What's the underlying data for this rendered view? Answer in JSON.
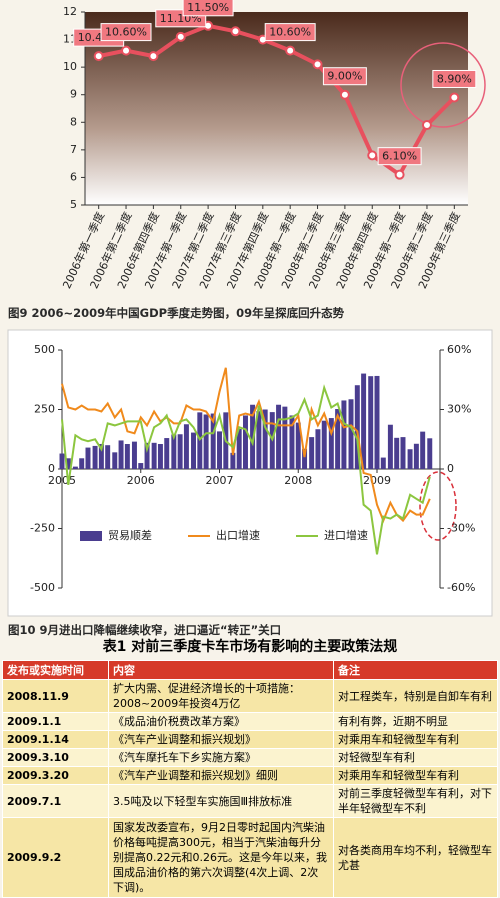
{
  "chart_data": [
    {
      "type": "line",
      "categories": [
        "2006年第一季度",
        "2006年第二季度",
        "2006年第四季度",
        "2007年第一季度",
        "2007年第二季度",
        "2007年第三季度",
        "2007年第四季度",
        "2008年第一季度",
        "2008年第二季度",
        "2008年第三季度",
        "2008年第四季度",
        "2009年第一季度",
        "2009年第二季度",
        "2009年第三季度"
      ],
      "series": [
        {
          "name": null,
          "color": "#e8505e",
          "values": [
            10.4,
            10.6,
            10.4,
            11.1,
            11.5,
            11.3,
            11.0,
            10.6,
            10.1,
            9.0,
            6.8,
            6.1,
            7.9,
            8.9
          ],
          "value_labels": [
            "10.40%",
            "10.60%",
            null,
            "11.10%",
            "11.50%",
            null,
            null,
            "10.60%",
            null,
            "9.00%",
            null,
            "6.10%",
            null,
            "8.90%"
          ]
        }
      ],
      "ylim": [
        5,
        12
      ],
      "yticks": [
        5,
        6,
        7,
        8,
        9,
        10,
        11,
        12
      ]
    },
    {
      "type": "combo",
      "x": [
        2005,
        2005.08,
        2005.17,
        2005.25,
        2005.33,
        2005.42,
        2005.5,
        2005.58,
        2005.67,
        2005.75,
        2005.83,
        2005.92,
        2006,
        2006.08,
        2006.17,
        2006.25,
        2006.33,
        2006.42,
        2006.5,
        2006.58,
        2006.67,
        2006.75,
        2006.83,
        2006.92,
        2007,
        2007.08,
        2007.17,
        2007.25,
        2007.33,
        2007.42,
        2007.5,
        2007.58,
        2007.67,
        2007.75,
        2007.83,
        2007.92,
        2008,
        2008.08,
        2008.17,
        2008.25,
        2008.33,
        2008.42,
        2008.5,
        2008.58,
        2008.67,
        2008.75,
        2008.83,
        2008.92,
        2009,
        2009.08,
        2009.17,
        2009.25,
        2009.33,
        2009.42,
        2009.5,
        2009.58,
        2009.67
      ],
      "series": [
        {
          "name": "贸易顺差",
          "type": "bar",
          "color": "#4a3d8f",
          "values": [
            65,
            45,
            10,
            45,
            90,
            97,
            105,
            100,
            70,
            120,
            105,
            115,
            25,
            110,
            110,
            105,
            130,
            145,
            146,
            188,
            153,
            238,
            229,
            233,
            158,
            238,
            68,
            168,
            225,
            270,
            243,
            250,
            239,
            270,
            262,
            225,
            195,
            85,
            134,
            167,
            203,
            214,
            252,
            288,
            293,
            352,
            401,
            390,
            391,
            48,
            186,
            131,
            134,
            83,
            106,
            157,
            129
          ]
        },
        {
          "name": "出口增速",
          "type": "line",
          "axis": "y2",
          "color": "#f08a1c",
          "values": [
            43,
            31,
            30,
            32,
            30,
            30,
            29,
            33,
            26,
            30,
            19,
            18,
            26,
            22,
            29,
            24,
            26,
            23,
            23,
            32,
            30,
            30,
            29,
            24,
            39,
            51,
            7,
            27,
            28,
            27,
            34,
            23,
            23,
            22,
            22,
            22,
            27,
            6,
            30,
            22,
            28,
            18,
            27,
            21,
            22,
            19,
            -2,
            -3,
            -18,
            -26,
            -17,
            -23,
            -26,
            -21,
            -23,
            -23,
            -15
          ]
        },
        {
          "name": "进口增速",
          "type": "line",
          "axis": "y2",
          "color": "#8cc63f",
          "values": [
            25,
            -8,
            17,
            15,
            14,
            15,
            10,
            23,
            22,
            23,
            24,
            24,
            24,
            10,
            21,
            23,
            27,
            16,
            24,
            25,
            21,
            15,
            18,
            18,
            27,
            14,
            11,
            21,
            20,
            13,
            32,
            21,
            15,
            25,
            25,
            26,
            28,
            35,
            25,
            27,
            41,
            31,
            33,
            23,
            21,
            15,
            -18,
            -21,
            -43,
            -24,
            -25,
            -23,
            -25,
            -13,
            -15,
            -17,
            -4
          ]
        }
      ],
      "xlim": [
        2005,
        2009.8
      ],
      "xticks": [
        2005,
        2006,
        2007,
        2008,
        2009
      ],
      "ylim": [
        -500,
        500
      ],
      "yticks": [
        -500,
        -250,
        0,
        250,
        500
      ],
      "y2lim": [
        -60,
        60
      ],
      "y2ticks": [
        {
          "value": 60,
          "label": "60%"
        },
        {
          "value": 30,
          "label": "30%"
        },
        0,
        {
          "value": -30,
          "label": "-30%"
        },
        {
          "value": -60,
          "label": "-60%"
        }
      ]
    }
  ],
  "captions": [
    "图9 2006~2009年中国GDP季度走势图，09年呈探底回升态势",
    "图10 9月进出口降幅继续收窄，进口逼近“转正”关口"
  ],
  "table": {
    "title": "表1 对前三季度卡车市场有影响的主要政策法规",
    "header": [
      "发布或实施时间",
      "内容",
      "备注"
    ],
    "rows": [
      [
        "2008.11.9",
        "扩大内需、促进经济增长的十项措施：2008~2009年投资4万亿",
        "对工程类车，特别是自卸车有利"
      ],
      [
        "2009.1.1",
        "《成品油价税费改革方案》",
        "有利有弊，近期不明显"
      ],
      [
        "2009.1.14",
        "《汽车产业调整和振兴规划》",
        "对乘用车和轻微型车有利"
      ],
      [
        "2009.3.10",
        "《汽车摩托车下乡实施方案》",
        "对轻微型车有利"
      ],
      [
        "2009.3.20",
        "《汽车产业调整和振兴规划》细则",
        "对乘用车和轻微型车有利"
      ],
      [
        "2009.7.1",
        "3.5吨及以下轻型车实施国Ⅲ排放标准",
        "对前三季度轻微型车有利，对下半年轻微型车不利"
      ],
      [
        "2009.9.2",
        "国家发改委宣布，9月2日零时起国内汽柴油价格每吨提高300元，相当于汽柴油每升分别提高0.22元和0.26元。这是今年以来，我国成品油价格的第六次调整(4次上调、2次下调)。",
        "对各类商用车均不利，轻微型车尤甚"
      ]
    ]
  }
}
